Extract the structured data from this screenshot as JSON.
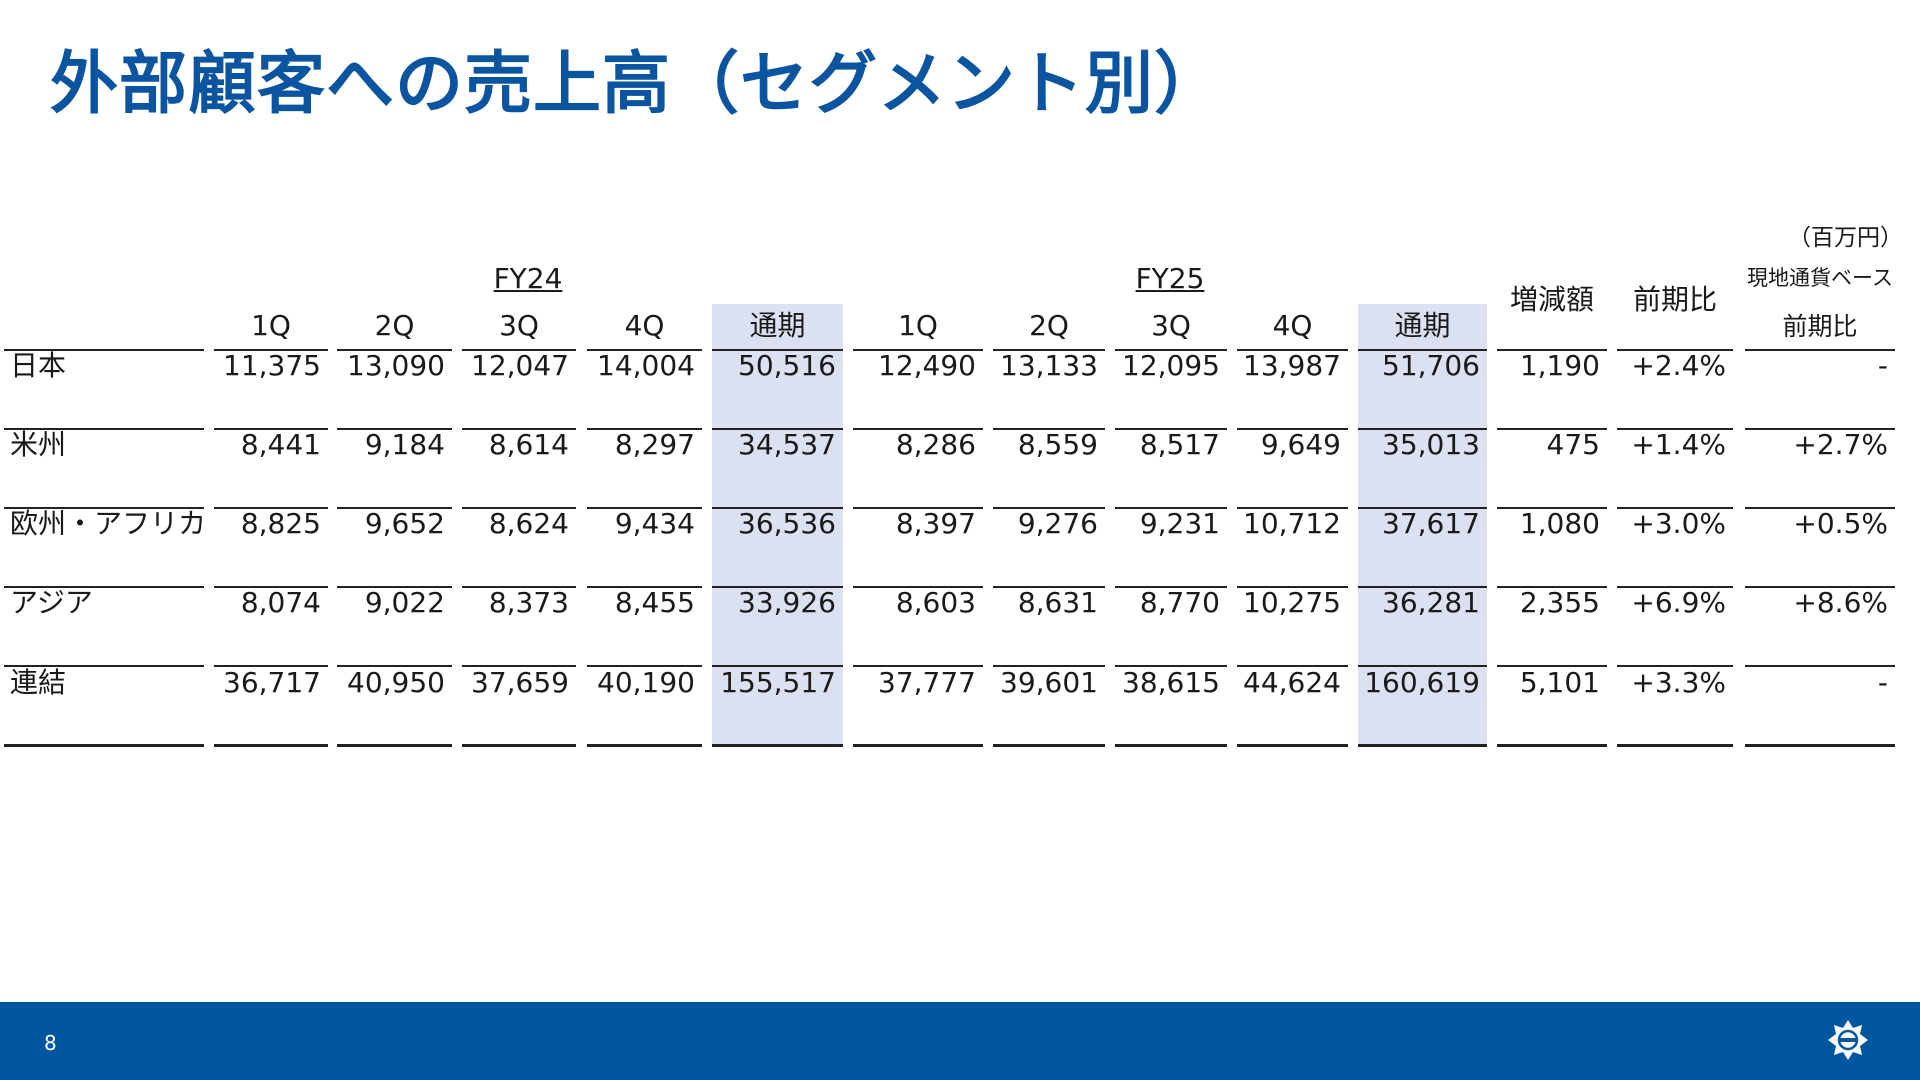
{
  "title": "外部顧客への売上高（セグメント別）",
  "unit": "（百万円）",
  "fy_labels": {
    "fy24": "FY24",
    "fy25": "FY25"
  },
  "headers": {
    "q1": "1Q",
    "q2": "2Q",
    "q3": "3Q",
    "q4": "4Q",
    "annual": "通期",
    "change": "増減額",
    "yoy": "前期比",
    "local_line1": "現地通貨ベース",
    "local_line2": "前期比"
  },
  "rows": [
    {
      "segment": "日本",
      "values": [
        "11,375",
        "13,090",
        "12,047",
        "14,004",
        "50,516",
        "12,490",
        "13,133",
        "12,095",
        "13,987",
        "51,706",
        "1,190",
        "+2.4%",
        "-"
      ]
    },
    {
      "segment": "米州",
      "values": [
        "8,441",
        "9,184",
        "8,614",
        "8,297",
        "34,537",
        "8,286",
        "8,559",
        "8,517",
        "9,649",
        "35,013",
        "475",
        "+1.4%",
        "+2.7%"
      ]
    },
    {
      "segment": "欧州・アフリカ",
      "values": [
        "8,825",
        "9,652",
        "8,624",
        "9,434",
        "36,536",
        "8,397",
        "9,276",
        "9,231",
        "10,712",
        "37,617",
        "1,080",
        "+3.0%",
        "+0.5%"
      ]
    },
    {
      "segment": "アジア",
      "values": [
        "8,074",
        "9,022",
        "8,373",
        "8,455",
        "33,926",
        "8,603",
        "8,631",
        "8,770",
        "10,275",
        "36,281",
        "2,355",
        "+6.9%",
        "+8.6%"
      ]
    },
    {
      "segment": "連結",
      "values": [
        "36,717",
        "40,950",
        "37,659",
        "40,190",
        "155,517",
        "37,777",
        "39,601",
        "38,615",
        "44,624",
        "160,619",
        "5,101",
        "+3.3%",
        "-"
      ]
    }
  ],
  "footer": {
    "page_number": "8"
  },
  "logo_icon": "company-logo-icon",
  "colors": {
    "title": "#0b55a0",
    "footer": "#00559f",
    "highlight": "#dce1f2"
  }
}
